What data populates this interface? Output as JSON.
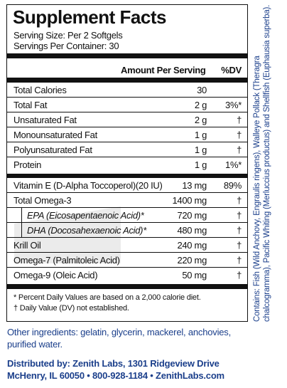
{
  "panel": {
    "title": "Supplement Facts",
    "serving_size": "Serving Size: Per 2 Softgels",
    "servings_per_container": "Servings Per Container: 30",
    "header_amount": "Amount Per Serving",
    "header_dv": "%DV"
  },
  "rows": [
    {
      "name": "Total Calories",
      "amount": "30",
      "dv": ""
    },
    {
      "name": "Total Fat",
      "amount": "2 g",
      "dv": "3%*"
    },
    {
      "name": "Unsaturated Fat",
      "amount": "2 g",
      "dv": "†"
    },
    {
      "name": "Monounsaturated Fat",
      "amount": "1 g",
      "dv": "†"
    },
    {
      "name": "Polyunsaturated Fat",
      "amount": "1 g",
      "dv": "†"
    },
    {
      "name": "Protein",
      "amount": "1 g",
      "dv": "1%*"
    },
    {
      "name": "Vitamin E (D-Alpha Toccoperol)(20 IU)",
      "amount": "13 mg",
      "dv": "89%"
    },
    {
      "name": "Total Omega-3",
      "amount": "1400 mg",
      "dv": "†"
    },
    {
      "name": "EPA (Eicosapentaenoic Acid)*",
      "amount": "720 mg",
      "dv": "†"
    },
    {
      "name": "DHA (Docosahexaenoic Acid)*",
      "amount": "480 mg",
      "dv": "†"
    },
    {
      "name": "Krill Oil",
      "amount": "240 mg",
      "dv": "†"
    },
    {
      "name": "Omega-7 (Palmitoleic Acid)",
      "amount": "220 mg",
      "dv": "†"
    },
    {
      "name": "Omega-9 (Oleic Acid)",
      "amount": "50 mg",
      "dv": "†"
    }
  ],
  "footnotes": {
    "percent_dv": "* Percent Daily Values are based on a 2,000 calorie diet.",
    "dv_not_established": "† Daily Value (DV) not established."
  },
  "contains": "Contains: Fish (Wild Anchovy, Engraulis ringens), Walleye Pollack (Theragra chalcogramma), Pacific Whiting (Merluccius productus) and Shellfish (Euphausia superba).",
  "other_ingredients": "Other ingredients: gelatin, glycerin, mackerel, anchovies, purified water.",
  "distributor": {
    "line1": "Distributed by: Zenith Labs, 1301 Ridgeview Drive",
    "line2": "McHenry, IL 60050 • 800-928-1184 • ZenithLabs.com"
  },
  "colors": {
    "text": "#111111",
    "accent_blue": "#1b3f8b",
    "watermark": "#ebebeb"
  }
}
